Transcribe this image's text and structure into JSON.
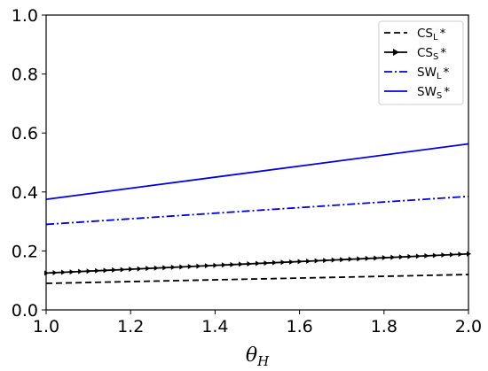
{
  "chart_data": {
    "type": "line",
    "title": "",
    "xlabel": "θ",
    "xlabel_sub": "H",
    "ylabel": "",
    "xlim": [
      1.0,
      2.0
    ],
    "ylim": [
      0.0,
      1.0
    ],
    "xticks": [
      "1.0",
      "1.2",
      "1.4",
      "1.6",
      "1.8",
      "2.0"
    ],
    "yticks": [
      "0.0",
      "0.2",
      "0.4",
      "0.6",
      "0.8",
      "1.0"
    ],
    "grid": false,
    "legend_position": "top-right",
    "x": [
      1.0,
      2.0
    ],
    "series": [
      {
        "name": "CS",
        "name_sub": "L",
        "name_suffix": "*",
        "values": [
          0.09,
          0.12
        ],
        "color": "#000000",
        "style": "dashed"
      },
      {
        "name": "CS",
        "name_sub": "S",
        "name_suffix": "*",
        "values": [
          0.125,
          0.19
        ],
        "color": "#000000",
        "style": "solid-markers"
      },
      {
        "name": "SW",
        "name_sub": "L",
        "name_suffix": "*",
        "values": [
          0.29,
          0.385
        ],
        "color": "#0000e6",
        "style": "dashdot"
      },
      {
        "name": "SW",
        "name_sub": "S",
        "name_suffix": "*",
        "values": [
          0.375,
          0.563
        ],
        "color": "#0000e6",
        "style": "solid"
      }
    ]
  }
}
